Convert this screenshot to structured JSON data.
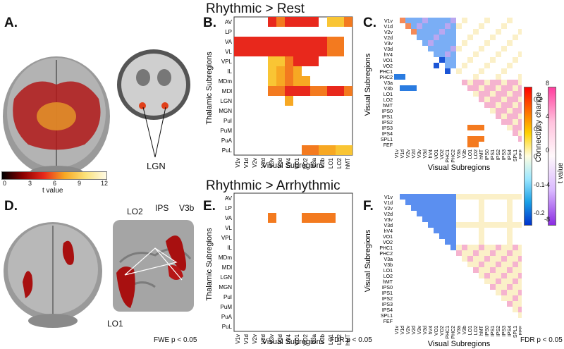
{
  "titles": {
    "top": "Rhythmic > Rest",
    "bottom": "Rhythmic > Arrhythmic"
  },
  "panels": {
    "A": "A.",
    "B": "B.",
    "C": "C.",
    "D": "D.",
    "E": "E.",
    "F": "F."
  },
  "labels": {
    "lgn": "LGN",
    "lo2": "LO2",
    "ips": "IPS",
    "v3b": "V3b",
    "lo1": "LO1",
    "thalamic_y": "Thalamic Subregions",
    "visual_x": "Visual Subregions",
    "visual_y": "Visual Subregions"
  },
  "colorbar_t": {
    "label": "t value",
    "ticks": [
      "0",
      "3",
      "6",
      "9",
      "12"
    ]
  },
  "colorbar_conn": {
    "label": "Connectivity change",
    "ticks": [
      "0.2",
      "0.1",
      "0",
      "-0.1",
      "-0.2"
    ]
  },
  "colorbar_tv": {
    "label": "t value",
    "ticks": [
      "8",
      "4",
      "0",
      "-4",
      "-8"
    ]
  },
  "stats": {
    "fwe": "FWE p < 0.05",
    "fdr_e": "FDR p < 0.05",
    "fdr_f": "FDR p < 0.05"
  },
  "thalamic": [
    "AV",
    "LP",
    "VA",
    "VL",
    "VPL",
    "IL",
    "MDm",
    "MDl",
    "LGN",
    "MGN",
    "PuI",
    "PuM",
    "PuA",
    "PuL"
  ],
  "visual12": [
    "V1v",
    "V1d",
    "V2v",
    "V2d",
    "V3v",
    "V3d",
    "hV4",
    "VO1",
    "VO2",
    "V3a",
    "V3b",
    "LO1",
    "LO2",
    "hMT"
  ],
  "visual23": [
    "V1v",
    "V1d",
    "V2v",
    "V2d",
    "V3v",
    "V3d",
    "hV4",
    "VO1",
    "VO2",
    "PHC1",
    "PHC2",
    "V3a",
    "V3b",
    "LO1",
    "LO2",
    "hMT",
    "IPS0",
    "IPS1",
    "IPS2",
    "IPS3",
    "IPS4",
    "SPL1",
    "FEF"
  ],
  "colors": {
    "red": "#e8281c",
    "orange": "#f37a1f",
    "amber": "#f7a823",
    "yellow": "#f9c534",
    "pale": "#fbe27a"
  }
}
